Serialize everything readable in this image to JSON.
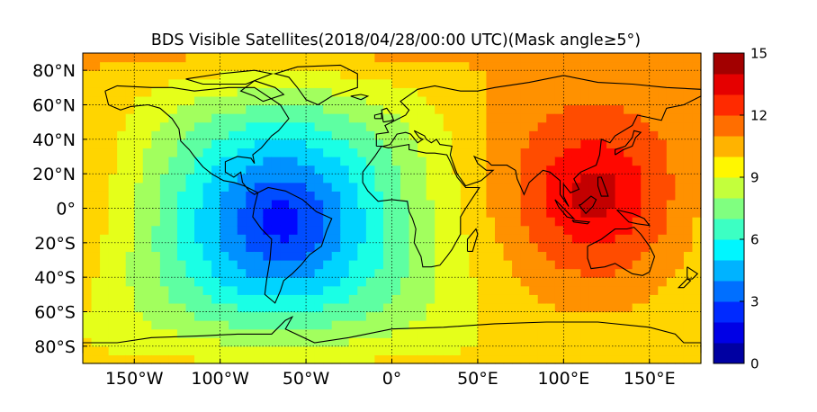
{
  "chart_data": {
    "type": "heatmap",
    "title": "BDS Visible Satellites(2018/04/28/00:00 UTC)(Mask angle≥5°)",
    "xlabel": "",
    "ylabel": "",
    "xlim": [
      -180,
      180
    ],
    "ylim": [
      -90,
      90
    ],
    "x_ticks": [
      {
        "value": -150,
        "label": "150°W"
      },
      {
        "value": -100,
        "label": "100°W"
      },
      {
        "value": -50,
        "label": "50°W"
      },
      {
        "value": 0,
        "label": "0°"
      },
      {
        "value": 50,
        "label": "50°E"
      },
      {
        "value": 100,
        "label": "100°E"
      },
      {
        "value": 150,
        "label": "150°E"
      }
    ],
    "y_ticks": [
      {
        "value": 80,
        "label": "80°N"
      },
      {
        "value": 60,
        "label": "60°N"
      },
      {
        "value": 40,
        "label": "40°N"
      },
      {
        "value": 20,
        "label": "20°N"
      },
      {
        "value": 0,
        "label": "0°"
      },
      {
        "value": -20,
        "label": "20°S"
      },
      {
        "value": -40,
        "label": "40°S"
      },
      {
        "value": -60,
        "label": "60°S"
      },
      {
        "value": -80,
        "label": "80°S"
      }
    ],
    "grid": true,
    "colormap": "jet",
    "colorbar": {
      "min": 0,
      "max": 15,
      "ticks": [
        {
          "value": 0,
          "label": "0"
        },
        {
          "value": 3,
          "label": "3"
        },
        {
          "value": 6,
          "label": "6"
        },
        {
          "value": 9,
          "label": "9"
        },
        {
          "value": 12,
          "label": "12"
        },
        {
          "value": 15,
          "label": "15"
        }
      ]
    },
    "cell_size_deg": 5,
    "field_model": {
      "description_of_values": "visible satellite count by lon/lat",
      "max_center": {
        "lon": 118,
        "lat": 8,
        "value": 14.5
      },
      "min_center": {
        "lon": -70,
        "lat": -5,
        "value": 1.0
      }
    },
    "coastline_color": "#000000"
  }
}
